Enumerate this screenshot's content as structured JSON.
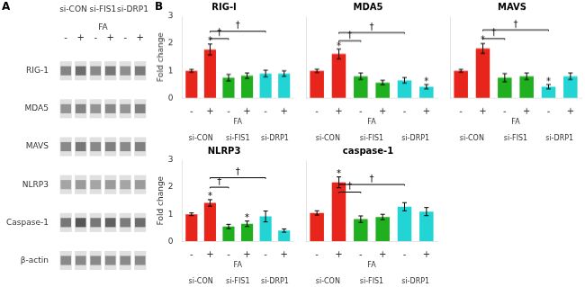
{
  "chart_data": [
    {
      "type": "heatmap",
      "panel_label": "A",
      "categories": [
        "-",
        "+",
        "-",
        "+",
        "-",
        "+"
      ],
      "xlabel": "FA",
      "groups": [
        "si-CON",
        "si-FIS1",
        "si-DRP1"
      ],
      "rows": [
        "RIG-1",
        "MDA5",
        "MAVS",
        "NLRP3",
        "Caspase-1",
        "β-actin"
      ],
      "cells": [
        [
          0.48,
          0.38,
          0.5,
          0.42,
          0.52,
          0.44
        ],
        [
          0.55,
          0.48,
          0.55,
          0.5,
          0.55,
          0.46
        ],
        [
          0.5,
          0.42,
          0.5,
          0.46,
          0.5,
          0.46
        ],
        [
          0.62,
          0.58,
          0.62,
          0.58,
          0.62,
          0.58
        ],
        [
          0.42,
          0.28,
          0.42,
          0.32,
          0.44,
          0.38
        ],
        [
          0.5,
          0.5,
          0.5,
          0.5,
          0.5,
          0.5
        ]
      ]
    },
    {
      "type": "bar",
      "panel_label": "B",
      "title": "RIG-I",
      "categories": [
        "-",
        "+",
        "-",
        "+",
        "-",
        "+"
      ],
      "xlabel": "FA",
      "groups": [
        "si-CON",
        "si-FIS1",
        "si-DRP1"
      ],
      "values": [
        1.0,
        1.78,
        0.75,
        0.82,
        0.9,
        0.9
      ],
      "errors": [
        0.05,
        0.2,
        0.12,
        0.1,
        0.12,
        0.1
      ],
      "colors": [
        "#e8251a",
        "#e8251a",
        "#1faf1f",
        "#1faf1f",
        "#22d4d4",
        "#22d4d4"
      ],
      "stars": [
        false,
        true,
        false,
        false,
        false,
        false
      ],
      "star_label": "*",
      "brackets": [
        {
          "from": 1,
          "to": 2,
          "y": 2.18,
          "label": "†"
        },
        {
          "from": 1,
          "to": 4,
          "y": 2.45,
          "label": "†"
        }
      ],
      "ylabel": "Fold change",
      "ylim": [
        0,
        3
      ],
      "yticks": [
        0,
        1,
        2,
        3
      ],
      "grid": false
    },
    {
      "type": "bar",
      "title": "MDA5",
      "categories": [
        "-",
        "+",
        "-",
        "+",
        "-",
        "+"
      ],
      "xlabel": "FA",
      "groups": [
        "si-CON",
        "si-FIS1",
        "si-DRP1"
      ],
      "values": [
        1.0,
        1.62,
        0.8,
        0.57,
        0.65,
        0.42
      ],
      "errors": [
        0.06,
        0.18,
        0.12,
        0.08,
        0.1,
        0.08
      ],
      "colors": [
        "#e8251a",
        "#e8251a",
        "#1faf1f",
        "#1faf1f",
        "#22d4d4",
        "#22d4d4"
      ],
      "stars": [
        false,
        true,
        false,
        false,
        false,
        true
      ],
      "star_label": "*",
      "brackets": [
        {
          "from": 1,
          "to": 2,
          "y": 2.1,
          "label": "†"
        },
        {
          "from": 1,
          "to": 4,
          "y": 2.4,
          "label": "†"
        }
      ],
      "ylim": [
        0,
        3
      ],
      "yticks": [
        0,
        1,
        2,
        3
      ],
      "grid": false,
      "tick_labels": "x"
    },
    {
      "type": "bar",
      "title": "MAVS",
      "categories": [
        "-",
        "+",
        "-",
        "+",
        "-",
        "+"
      ],
      "xlabel": "FA",
      "groups": [
        "si-CON",
        "si-FIS1",
        "si-DRP1"
      ],
      "values": [
        1.0,
        1.82,
        0.75,
        0.8,
        0.42,
        0.8
      ],
      "errors": [
        0.05,
        0.18,
        0.15,
        0.12,
        0.08,
        0.12
      ],
      "colors": [
        "#e8251a",
        "#e8251a",
        "#1faf1f",
        "#1faf1f",
        "#22d4d4",
        "#22d4d4"
      ],
      "stars": [
        false,
        true,
        false,
        false,
        true,
        false
      ],
      "star_label": "*",
      "brackets": [
        {
          "from": 1,
          "to": 2,
          "y": 2.18,
          "label": "†"
        },
        {
          "from": 1,
          "to": 4,
          "y": 2.5,
          "label": "†"
        }
      ],
      "ylim": [
        0,
        3
      ],
      "yticks": [
        0,
        1,
        2,
        3
      ],
      "grid": false,
      "tick_labels": "x"
    },
    {
      "type": "bar",
      "title": "NLRP3",
      "categories": [
        "-",
        "+",
        "-",
        "+",
        "-",
        "+"
      ],
      "xlabel": "FA",
      "groups": [
        "si-CON",
        "si-FIS1",
        "si-DRP1"
      ],
      "values": [
        1.0,
        1.42,
        0.55,
        0.65,
        0.92,
        0.4
      ],
      "errors": [
        0.05,
        0.12,
        0.08,
        0.1,
        0.2,
        0.06
      ],
      "colors": [
        "#e8251a",
        "#e8251a",
        "#1faf1f",
        "#1faf1f",
        "#22d4d4",
        "#22d4d4"
      ],
      "stars": [
        false,
        true,
        false,
        true,
        false,
        false
      ],
      "star_label": "*",
      "brackets": [
        {
          "from": 1,
          "to": 2,
          "y": 2.0,
          "label": "†"
        },
        {
          "from": 1,
          "to": 4,
          "y": 2.35,
          "label": "†"
        }
      ],
      "ylabel": "Fold change",
      "ylim": [
        0,
        3
      ],
      "yticks": [
        0,
        1,
        2,
        3
      ],
      "grid": false
    },
    {
      "type": "bar",
      "title": "caspase-1",
      "categories": [
        "-",
        "+",
        "-",
        "+",
        "-",
        "+"
      ],
      "xlabel": "FA",
      "groups": [
        "si-CON",
        "si-FIS1",
        "si-DRP1"
      ],
      "values": [
        1.05,
        2.18,
        0.82,
        0.9,
        1.28,
        1.1
      ],
      "errors": [
        0.08,
        0.2,
        0.12,
        0.1,
        0.15,
        0.15
      ],
      "colors": [
        "#e8251a",
        "#e8251a",
        "#1faf1f",
        "#1faf1f",
        "#22d4d4",
        "#22d4d4"
      ],
      "stars": [
        false,
        true,
        false,
        false,
        false,
        false
      ],
      "star_label": "*",
      "brackets": [
        {
          "from": 1,
          "to": 2,
          "y": 1.82,
          "label": "†"
        },
        {
          "from": 1,
          "to": 4,
          "y": 2.1,
          "label": "†"
        }
      ],
      "ylim": [
        0,
        3
      ],
      "yticks": [
        0,
        1,
        2,
        3
      ],
      "grid": false,
      "tick_labels": "x"
    }
  ]
}
